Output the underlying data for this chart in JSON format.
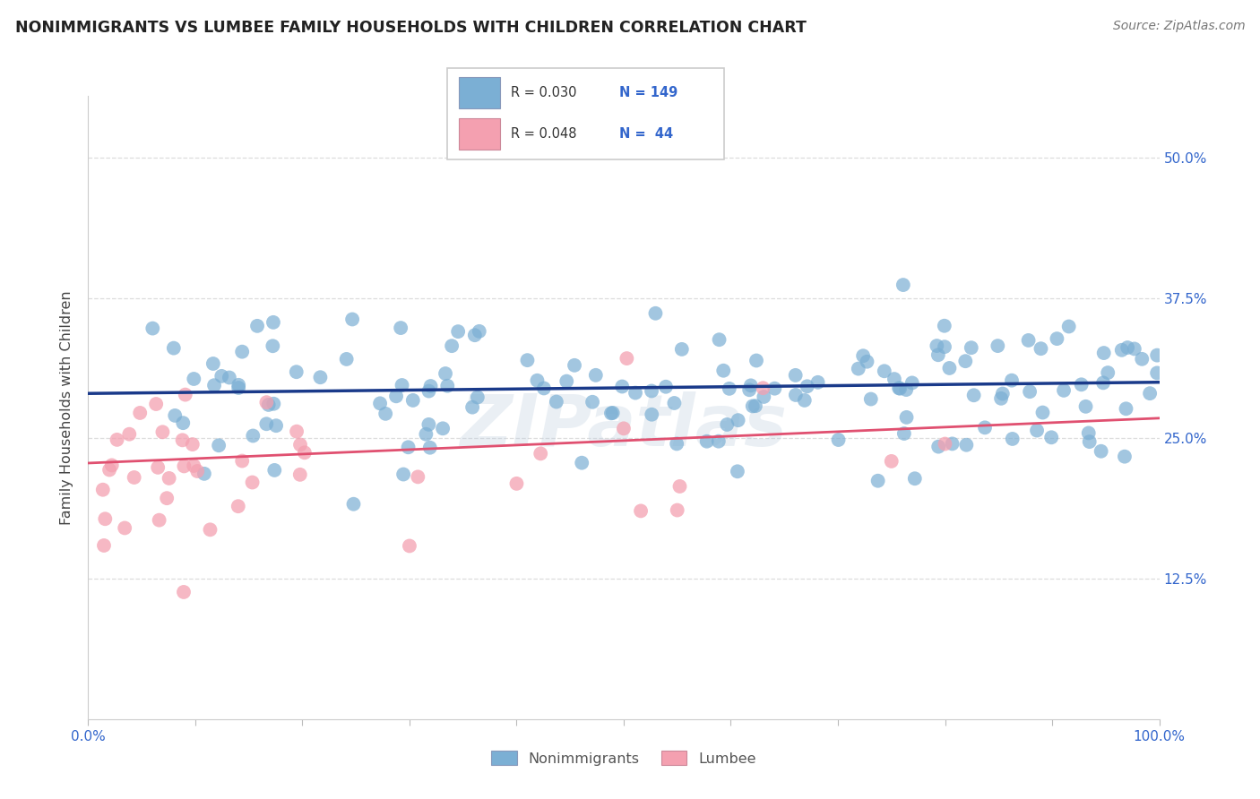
{
  "title": "NONIMMIGRANTS VS LUMBEE FAMILY HOUSEHOLDS WITH CHILDREN CORRELATION CHART",
  "source": "Source: ZipAtlas.com",
  "ylabel": "Family Households with Children",
  "yticks": [
    "12.5%",
    "25.0%",
    "37.5%",
    "50.0%"
  ],
  "ytick_values": [
    0.125,
    0.25,
    0.375,
    0.5
  ],
  "legend_r_blue": "R = 0.030",
  "legend_n_blue": "N = 149",
  "legend_r_pink": "R = 0.048",
  "legend_n_pink": "N =  44",
  "blue_color": "#7BAFD4",
  "pink_color": "#F4A0B0",
  "blue_line_color": "#1A3A8A",
  "pink_line_color": "#E05070",
  "title_color": "#222222",
  "tick_color": "#3366CC",
  "watermark": "ZIPatlas",
  "background_color": "#FFFFFF",
  "blue_line_y": [
    0.29,
    0.3
  ],
  "pink_line_y": [
    0.228,
    0.268
  ],
  "xmin": 0.0,
  "xmax": 1.0,
  "ymin": 0.0,
  "ymax": 0.555,
  "grid_color": "#DDDDDD",
  "legend_r_color": "#3366CC",
  "legend_n_color": "#3366CC",
  "legend_text_color": "#333333"
}
